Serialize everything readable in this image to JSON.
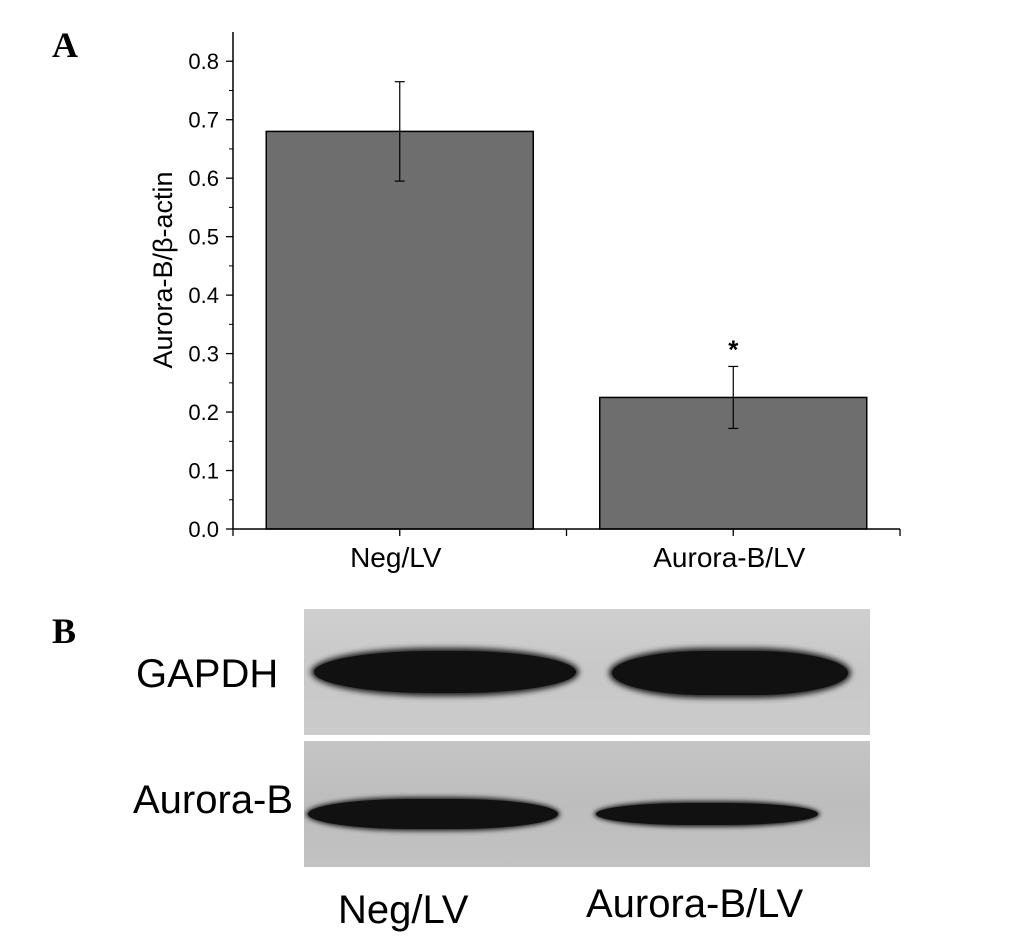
{
  "panels": {
    "a_label": "A",
    "b_label": "B"
  },
  "chart_data": {
    "type": "bar",
    "categories": [
      "Neg/LV",
      "Aurora-B/LV"
    ],
    "values": [
      0.68,
      0.225
    ],
    "errors": [
      0.085,
      0.053
    ],
    "annotations": [
      "",
      "*"
    ],
    "ylabel": "Aurora-B/β-actin",
    "xlabel": "",
    "ylim": [
      0,
      0.85
    ],
    "yticks": [
      "0.0",
      "0.1",
      "0.2",
      "0.3",
      "0.4",
      "0.5",
      "0.6",
      "0.7",
      "0.8"
    ],
    "bar_color": "#6e6e6e",
    "grid": false
  },
  "blot": {
    "rows": [
      {
        "label": "GAPDH"
      },
      {
        "label": "Aurora-B"
      }
    ],
    "lanes": [
      "Neg/LV",
      "Aurora-B/LV"
    ],
    "band_color": "#111111",
    "membrane_color": "#c7c7c7"
  }
}
